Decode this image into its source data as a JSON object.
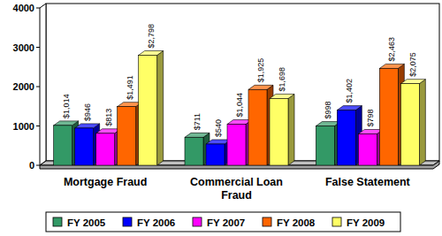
{
  "chart_data": {
    "type": "bar",
    "categories": [
      "Mortgage Fraud",
      "Commercial Loan Fraud",
      "False Statement"
    ],
    "series": [
      {
        "name": "FY 2005",
        "color": "#339966",
        "values": [
          1014,
          711,
          998
        ],
        "value_labels": [
          "$1,014",
          "$711",
          "$998"
        ]
      },
      {
        "name": "FY 2006",
        "color": "#0000ff",
        "values": [
          946,
          540,
          1402
        ],
        "value_labels": [
          "$946",
          "$540",
          "$1,402"
        ]
      },
      {
        "name": "FY 2007",
        "color": "#ff00ff",
        "values": [
          813,
          1044,
          798
        ],
        "value_labels": [
          "$813",
          "$1,044",
          "$798"
        ]
      },
      {
        "name": "FY 2008",
        "color": "#ff6600",
        "values": [
          1491,
          1925,
          2463
        ],
        "value_labels": [
          "$1,491",
          "$1,925",
          "$2,463"
        ]
      },
      {
        "name": "FY 2009",
        "color": "#ffff66",
        "values": [
          2798,
          1698,
          2075
        ],
        "value_labels": [
          "$2,798",
          "$1,698",
          "$2,075"
        ]
      }
    ],
    "ylim": [
      0,
      4000
    ],
    "yticks": [
      0,
      1000,
      2000,
      3000,
      4000
    ],
    "grid": false,
    "data_labels": true,
    "legend": "bottom"
  }
}
